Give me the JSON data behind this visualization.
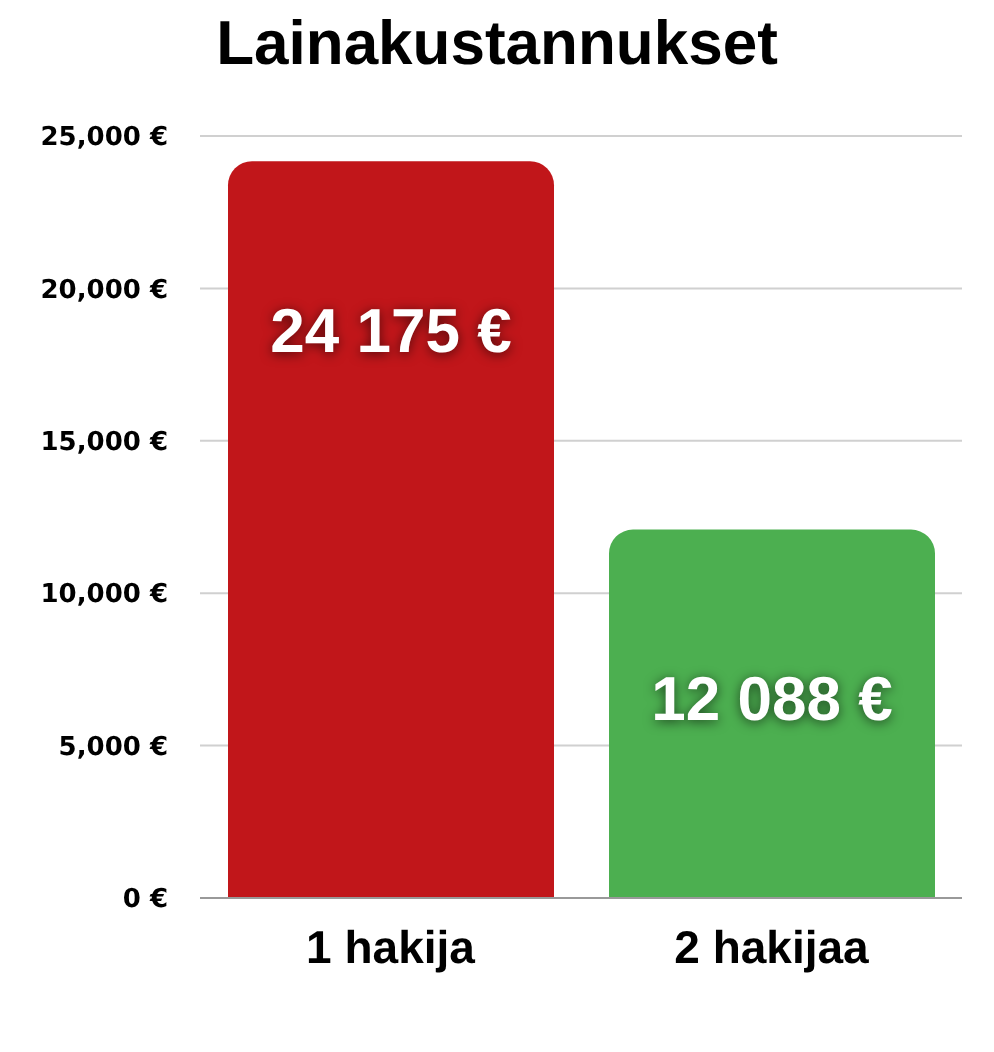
{
  "chart_data": {
    "type": "bar",
    "title": "Lainakustannukset",
    "categories": [
      "1 hakija",
      "2 hakijaa"
    ],
    "values": [
      24175,
      12088
    ],
    "colors": [
      "#c1161a",
      "#4caf50"
    ],
    "value_labels": [
      "24 175 €",
      "12 088 €"
    ],
    "ylim": [
      0,
      25000
    ],
    "yticks": [
      {
        "value": 0,
        "label": "0 €"
      },
      {
        "value": 5000,
        "label": "5,000 €"
      },
      {
        "value": 10000,
        "label": "10,000 €"
      },
      {
        "value": 15000,
        "label": "15,000 €"
      },
      {
        "value": 20000,
        "label": "20,000 €"
      },
      {
        "value": 25000,
        "label": "25,000 €"
      }
    ],
    "grid": "y"
  }
}
